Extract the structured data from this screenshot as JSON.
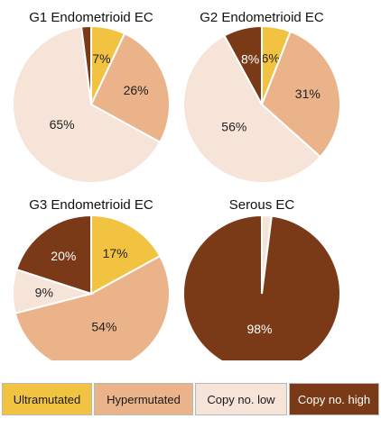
{
  "categories": [
    "Ultramutated",
    "Hypermutated",
    "Copy no. low",
    "Copy no. high"
  ],
  "colors": [
    "#f2c340",
    "#eab38a",
    "#f7e4d8",
    "#7a3a17"
  ],
  "chart_data": [
    {
      "type": "pie",
      "title": "G1 Endometrioid EC",
      "values": [
        7,
        26,
        65,
        2
      ],
      "labels": [
        "7%",
        "26%",
        "65%",
        ""
      ]
    },
    {
      "type": "pie",
      "title": "G2 Endometrioid EC",
      "values": [
        6,
        31,
        56,
        8
      ],
      "labels": [
        "6%",
        "31%",
        "56%",
        "8%"
      ]
    },
    {
      "type": "pie",
      "title": "G3 Endometrioid EC",
      "values": [
        17,
        54,
        9,
        20
      ],
      "labels": [
        "17%",
        "54%",
        "9%",
        "20%"
      ]
    },
    {
      "type": "pie",
      "title": "Serous EC",
      "values": [
        0,
        0,
        2,
        98
      ],
      "labels": [
        "",
        "",
        "",
        "98%"
      ]
    }
  ]
}
